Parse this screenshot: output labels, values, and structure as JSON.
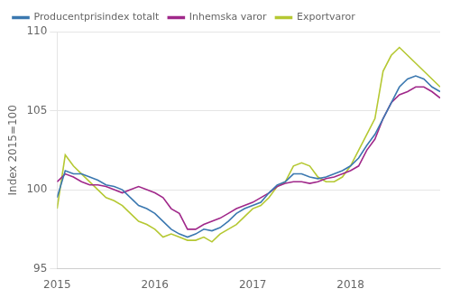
{
  "chart_data": {
    "type": "line",
    "ylabel": "Index 2015=100",
    "x": [
      2015.0,
      2015.0833,
      2015.1667,
      2015.25,
      2015.3333,
      2015.4167,
      2015.5,
      2015.5833,
      2015.6667,
      2015.75,
      2015.8333,
      2015.9167,
      2016.0,
      2016.0833,
      2016.1667,
      2016.25,
      2016.3333,
      2016.4167,
      2016.5,
      2016.5833,
      2016.6667,
      2016.75,
      2016.8333,
      2016.9167,
      2017.0,
      2017.0833,
      2017.1667,
      2017.25,
      2017.3333,
      2017.4167,
      2017.5,
      2017.5833,
      2017.6667,
      2017.75,
      2017.8333,
      2017.9167,
      2018.0,
      2018.0833,
      2018.1667,
      2018.25,
      2018.3333,
      2018.4167,
      2018.5,
      2018.5833,
      2018.6667,
      2018.75,
      2018.8333,
      2018.9167
    ],
    "series": [
      {
        "name": "Producentprisindex totalt",
        "color": "#3b78b0",
        "values": [
          99.5,
          101.2,
          101.0,
          101.0,
          100.8,
          100.6,
          100.3,
          100.2,
          100.0,
          99.5,
          99.0,
          98.8,
          98.5,
          98.0,
          97.5,
          97.2,
          97.0,
          97.2,
          97.5,
          97.4,
          97.6,
          98.0,
          98.5,
          98.8,
          99.0,
          99.2,
          99.8,
          100.3,
          100.5,
          101.0,
          101.0,
          100.8,
          100.7,
          100.8,
          101.0,
          101.2,
          101.5,
          102.0,
          102.8,
          103.5,
          104.5,
          105.5,
          106.5,
          107.0,
          107.2,
          107.0,
          106.5,
          106.2
        ]
      },
      {
        "name": "Inhemska varor",
        "color": "#a0288a",
        "values": [
          100.5,
          101.0,
          100.8,
          100.5,
          100.3,
          100.3,
          100.2,
          100.0,
          99.8,
          100.0,
          100.2,
          100.0,
          99.8,
          99.5,
          98.8,
          98.5,
          97.5,
          97.5,
          97.8,
          98.0,
          98.2,
          98.5,
          98.8,
          99.0,
          99.2,
          99.5,
          99.8,
          100.2,
          100.4,
          100.5,
          100.5,
          100.4,
          100.5,
          100.7,
          100.8,
          101.0,
          101.2,
          101.5,
          102.5,
          103.2,
          104.5,
          105.5,
          106.0,
          106.2,
          106.5,
          106.5,
          106.2,
          105.8
        ]
      },
      {
        "name": "Exportvaror",
        "color": "#b5c832",
        "values": [
          98.8,
          102.2,
          101.5,
          101.0,
          100.5,
          100.0,
          99.5,
          99.3,
          99.0,
          98.5,
          98.0,
          97.8,
          97.5,
          97.0,
          97.2,
          97.0,
          96.8,
          96.8,
          97.0,
          96.7,
          97.2,
          97.5,
          97.8,
          98.3,
          98.8,
          99.0,
          99.5,
          100.2,
          100.5,
          101.5,
          101.7,
          101.5,
          100.8,
          100.5,
          100.5,
          100.8,
          101.5,
          102.5,
          103.5,
          104.5,
          107.5,
          108.5,
          109.0,
          108.5,
          108.0,
          107.5,
          107.0,
          106.5
        ]
      }
    ],
    "xlim": [
      2015.0,
      2018.917
    ],
    "xticks": [
      2015,
      2016,
      2017,
      2018
    ],
    "ylim": [
      95,
      110
    ],
    "yticks": [
      95,
      100,
      105,
      110
    ],
    "grid": "y",
    "legend": "upper left"
  }
}
